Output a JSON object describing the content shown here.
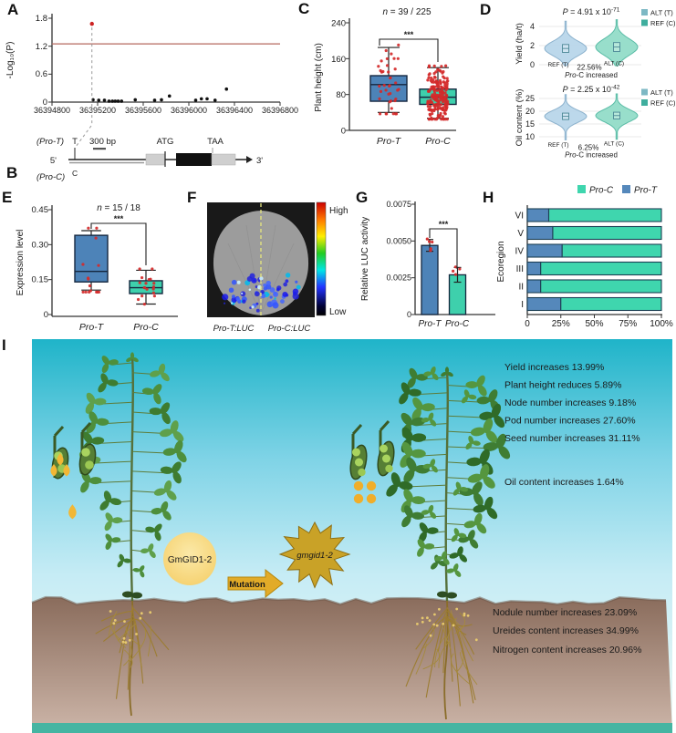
{
  "letters": {
    "a": "A",
    "b": "B",
    "c": "C",
    "d": "D",
    "e": "E",
    "f": "F",
    "g": "G",
    "h": "H",
    "i": "I"
  },
  "chart_data": [
    {
      "panel": "A",
      "type": "scatter",
      "ylabel": "-Log₁₀(P)",
      "yticks": [
        0,
        0.6,
        1.2,
        1.8
      ],
      "xticks": [
        36394800,
        36395200,
        36395600,
        36396000,
        36396400,
        36396800
      ],
      "xlim": [
        36394800,
        36396800
      ],
      "ylim": [
        0,
        1.8
      ],
      "threshold_line_y": 1.25,
      "threshold_color": "#b5695f",
      "highlight_point": {
        "x": 36395150,
        "y": 1.68,
        "color": "#cc2222"
      },
      "points": [
        [
          36395160,
          0.05
        ],
        [
          36395210,
          0.04
        ],
        [
          36395260,
          0.04
        ],
        [
          36395300,
          0.02
        ],
        [
          36395330,
          0.02
        ],
        [
          36395355,
          0.02
        ],
        [
          36395380,
          0.02
        ],
        [
          36395410,
          0.02
        ],
        [
          36395530,
          0.05
        ],
        [
          36395700,
          0.04
        ],
        [
          36395760,
          0.05
        ],
        [
          36395830,
          0.13
        ],
        [
          36396060,
          0.04
        ],
        [
          36396110,
          0.07
        ],
        [
          36396160,
          0.07
        ],
        [
          36396230,
          0.04
        ],
        [
          36396330,
          0.28
        ]
      ]
    },
    {
      "panel": "C",
      "type": "box",
      "ylabel": "Plant height (cm)",
      "yticks": [
        0,
        80,
        160,
        240
      ],
      "ylim": [
        0,
        240
      ],
      "annotation_n": "n",
      "annotation_rest": " = 39 / 225",
      "significance": "***",
      "point_color": "#d42a2a",
      "groups": [
        {
          "label": "Pro-T",
          "color": "#4d83b8",
          "whisker_low": 40,
          "q1": 65,
          "median": 102,
          "q3": 122,
          "whisker_high": 185,
          "n_points": 39
        },
        {
          "label": "Pro-C",
          "color": "#3ed0ac",
          "whisker_low": 27,
          "q1": 58,
          "median": 74,
          "q3": 92,
          "whisker_high": 140,
          "n_points": 225
        }
      ]
    },
    {
      "panel": "D",
      "subpanel": "top",
      "type": "violin",
      "p_label": "P",
      "p_eq": " = 4.91 x 10",
      "p_exp": "-71",
      "ylabel": "Yield (ha/t)",
      "yticks": [
        0,
        2,
        4
      ],
      "groups": [
        {
          "label": "REF (T)",
          "fill": "#b9d6ea",
          "stroke": "#86aecb",
          "center": 1.7,
          "spread": 0.75,
          "range": [
            -0.1,
            4.55
          ]
        },
        {
          "label": "ALT (C)",
          "fill": "#93ddc9",
          "stroke": "#52b9a2",
          "center": 1.85,
          "spread": 0.85,
          "range": [
            -0.1,
            4.7
          ]
        }
      ],
      "increase_pct": "22.56%",
      "note_italic": "Pro",
      "note_rest": "-C increased",
      "legend": [
        {
          "label": "ALT (T)",
          "color": "#7db8c4"
        },
        {
          "label": "REF (C)",
          "color": "#3fae9e"
        }
      ]
    },
    {
      "panel": "D",
      "subpanel": "bottom",
      "type": "violin",
      "p_label": "P",
      "p_eq": " = 2.25 x 10",
      "p_exp": "-42",
      "ylabel": "Oil content (%)",
      "yticks": [
        10,
        15,
        20,
        25
      ],
      "groups": [
        {
          "label": "REF (T)",
          "fill": "#b9d6ea",
          "stroke": "#86aecb",
          "center": 18.0,
          "spread": 2.3,
          "range": [
            8.8,
            26.5
          ]
        },
        {
          "label": "ALT (C)",
          "fill": "#93ddc9",
          "stroke": "#52b9a2",
          "center": 18.3,
          "spread": 2.4,
          "range": [
            9,
            26.8
          ]
        }
      ],
      "increase_pct": "6.25%",
      "note_italic": "Pro",
      "note_rest": "-C increased",
      "legend": [
        {
          "label": "ALT (T)",
          "color": "#7db8c4"
        },
        {
          "label": "REF (C)",
          "color": "#3fae9e"
        }
      ]
    },
    {
      "panel": "E",
      "type": "box",
      "ylabel": "Expression level",
      "ytick_labels": [
        "0",
        "0.15",
        "0.30",
        "0.45"
      ],
      "yticks": [
        0,
        0.15,
        0.3,
        0.45
      ],
      "ylim": [
        0,
        0.45
      ],
      "annotation_n": "n",
      "annotation_rest": " = 15 / 18",
      "significance": "***",
      "point_color": "#d42a2a",
      "groups": [
        {
          "label": "Pro-T",
          "color": "#4d83b8",
          "whisker_low": 0.105,
          "q1": 0.14,
          "median": 0.185,
          "q3": 0.34,
          "whisker_high": 0.36,
          "n_points": 15
        },
        {
          "label": "Pro-C",
          "color": "#3ed0ac",
          "whisker_low": 0.045,
          "q1": 0.09,
          "median": 0.115,
          "q3": 0.145,
          "whisker_high": 0.19,
          "n_points": 18
        }
      ]
    },
    {
      "panel": "G",
      "type": "bar",
      "ylabel": "Relative LUC activity",
      "ytick_labels": [
        "0",
        "0.0025",
        "0.0050",
        "0.0075"
      ],
      "yticks": [
        0,
        0.0025,
        0.005,
        0.0075
      ],
      "ylim": [
        0,
        0.0075
      ],
      "significance": "***",
      "point_color": "#d42a2a",
      "bars": [
        {
          "label": "Pro-T",
          "value": 0.0047,
          "error": 0.0004,
          "color": "#4d83b8"
        },
        {
          "label": "Pro-C",
          "value": 0.0027,
          "error": 0.0005,
          "color": "#3ed0ac"
        }
      ]
    },
    {
      "panel": "H",
      "type": "stacked_bar_h",
      "ylabel": "Ecoregion",
      "categories": [
        "VI",
        "V",
        "IV",
        "III",
        "II",
        "I"
      ],
      "xtick_labels": [
        "0",
        "25%",
        "50%",
        "75%",
        "100%"
      ],
      "series": [
        {
          "name": "Pro-T",
          "color": "#5588bb",
          "values": [
            16,
            19,
            26,
            10,
            10,
            25
          ]
        },
        {
          "name": "Pro-C",
          "color": "#3fd6ae",
          "values": [
            84,
            81,
            74,
            90,
            90,
            75
          ]
        }
      ],
      "legend": [
        {
          "label": "Pro-C",
          "color": "#3fd6ae"
        },
        {
          "label": "Pro-T",
          "color": "#5588bb"
        }
      ]
    }
  ],
  "panels": {
    "b": {
      "pro_t": "(Pro-T)",
      "allele_t": "T",
      "scale_bar": "300 bp",
      "start_codon": "ATG",
      "stop_codon": "TAA",
      "five_prime": "5'",
      "three_prime": "3'",
      "pro_c": "(Pro-C)",
      "allele_c": "C"
    },
    "f": {
      "high": "High",
      "low": "Low",
      "left_label": "Pro-T:LUC",
      "right_label": "Pro-C:LUC"
    },
    "i": {
      "gene": "GmGID1-2",
      "mutation": "Mutation",
      "mutant": "gmgid1-2",
      "top_annotations": [
        "Yield increases 13.99%",
        "Plant height reduces 5.89%",
        "Node number increases 9.18%",
        "Pod number increases 27.60%",
        "Seed number increases 31.11%"
      ],
      "oil_annotation": "Oil content increases 1.64%",
      "soil_annotations": [
        "Nodule number increases 23.09%",
        "Ureides content increases 34.99%",
        "Nitrogen content increases 20.96%"
      ]
    }
  }
}
